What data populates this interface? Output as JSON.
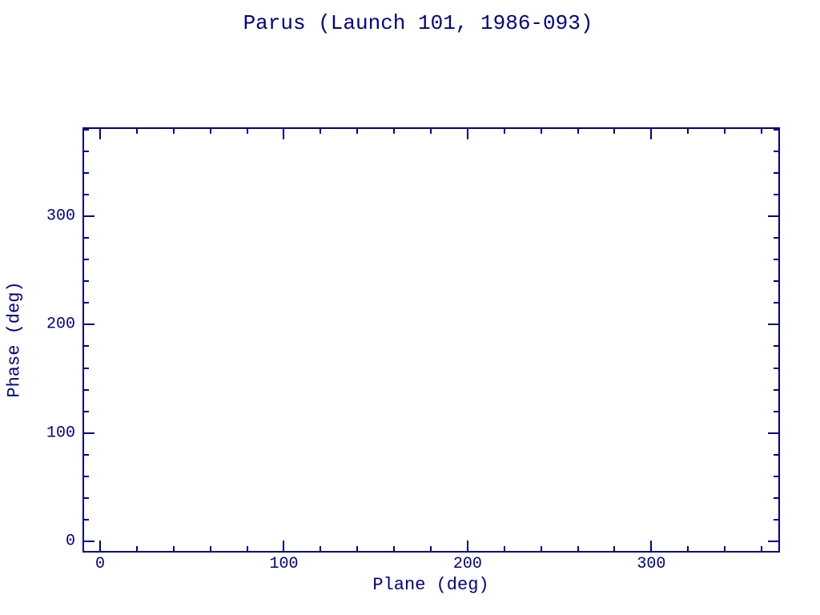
{
  "colors": {
    "ink": "#00008B",
    "background": "#FFFFFF"
  },
  "chart_data": {
    "type": "scatter",
    "title": "Parus (Launch 101, 1986-093)",
    "xlabel": "Plane (deg)",
    "ylabel": "Phase (deg)",
    "xlim": [
      -9.6,
      370.0
    ],
    "ylim": [
      -10.4,
      382.2
    ],
    "x_major_ticks": [
      0,
      100,
      200,
      300
    ],
    "y_major_ticks": [
      0,
      100,
      200,
      300
    ],
    "x_tick_labels": [
      "0",
      "100",
      "200",
      "300"
    ],
    "y_tick_labels": [
      "0",
      "100",
      "200",
      "300"
    ],
    "minor_tick_interval": 20,
    "major_tick_interval": 100,
    "grid": false,
    "frame": true,
    "legend": null,
    "series": [],
    "notes": "empty plot area - no data points rendered"
  }
}
